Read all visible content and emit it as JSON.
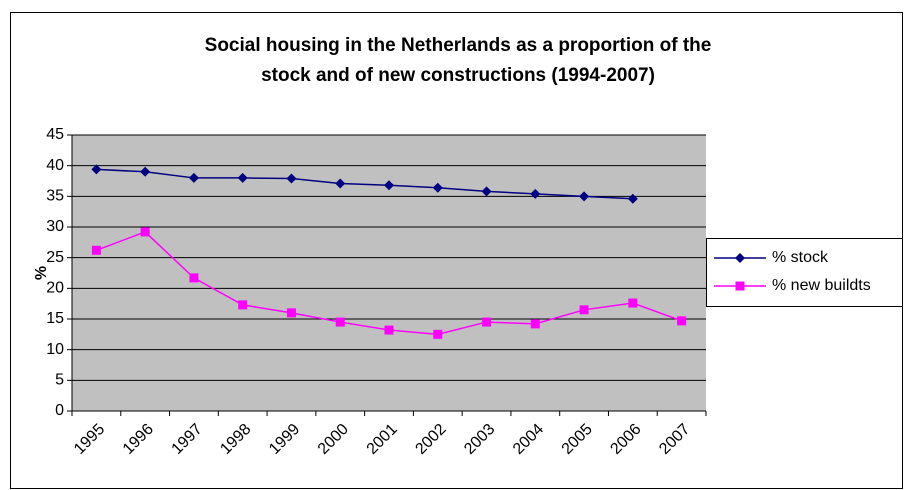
{
  "chart_data": {
    "type": "line",
    "title": [
      "Social housing in the Netherlands as a proportion of the",
      "stock and of new constructions (1994-2007)"
    ],
    "y_label": "%",
    "categories": [
      "1995",
      "1996",
      "1997",
      "1998",
      "1999",
      "2000",
      "2001",
      "2002",
      "2003",
      "2004",
      "2005",
      "2006",
      "2007"
    ],
    "series": [
      {
        "name": "% stock",
        "color": "#000080",
        "marker": "diamond",
        "values": [
          39.4,
          39.0,
          38.0,
          38.0,
          37.9,
          37.1,
          36.8,
          36.4,
          35.8,
          35.4,
          35.0,
          34.6,
          null
        ]
      },
      {
        "name": "% new buildts",
        "color": "#ff00ff",
        "marker": "square",
        "values": [
          26.2,
          29.2,
          21.7,
          17.3,
          16.0,
          14.5,
          13.2,
          12.5,
          14.5,
          14.2,
          16.5,
          17.6,
          14.7
        ]
      }
    ],
    "ylim": [
      0,
      45
    ],
    "yticks": [
      0,
      5,
      10,
      15,
      20,
      25,
      30,
      35,
      40,
      45
    ],
    "grid": true,
    "legend": "right"
  }
}
